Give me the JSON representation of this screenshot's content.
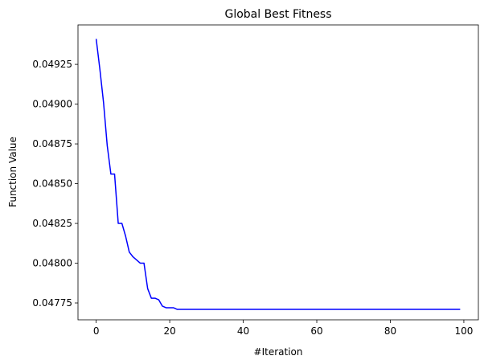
{
  "chart_data": {
    "type": "line",
    "title": "Global Best Fitness",
    "xlabel": "#Iteration",
    "ylabel": "Function Value",
    "xlim": [
      -4.95,
      103.95
    ],
    "ylim": [
      0.047644,
      0.049498
    ],
    "xticks": [
      0,
      20,
      40,
      60,
      80,
      100
    ],
    "xtick_labels": [
      "0",
      "20",
      "40",
      "60",
      "80",
      "100"
    ],
    "yticks": [
      0.04775,
      0.048,
      0.04825,
      0.0485,
      0.04875,
      0.049,
      0.04925
    ],
    "ytick_labels": [
      "0.04775",
      "0.04800",
      "0.04825",
      "0.04850",
      "0.04875",
      "0.04900",
      "0.04925"
    ],
    "grid": false,
    "series": [
      {
        "name": "Global Best Fitness",
        "color": "#0000ff",
        "x": [
          0,
          1,
          2,
          3,
          4,
          5,
          6,
          7,
          8,
          9,
          10,
          11,
          12,
          13,
          14,
          15,
          16,
          17,
          18,
          19,
          20,
          21,
          22,
          23,
          99
        ],
        "y": [
          0.04941,
          0.04922,
          0.04901,
          0.04874,
          0.04856,
          0.04856,
          0.04825,
          0.04825,
          0.04817,
          0.04807,
          0.04804,
          0.04802,
          0.048,
          0.048,
          0.04784,
          0.04778,
          0.04778,
          0.04777,
          0.04773,
          0.04772,
          0.04772,
          0.04772,
          0.04771,
          0.04771,
          0.04771
        ]
      }
    ]
  }
}
